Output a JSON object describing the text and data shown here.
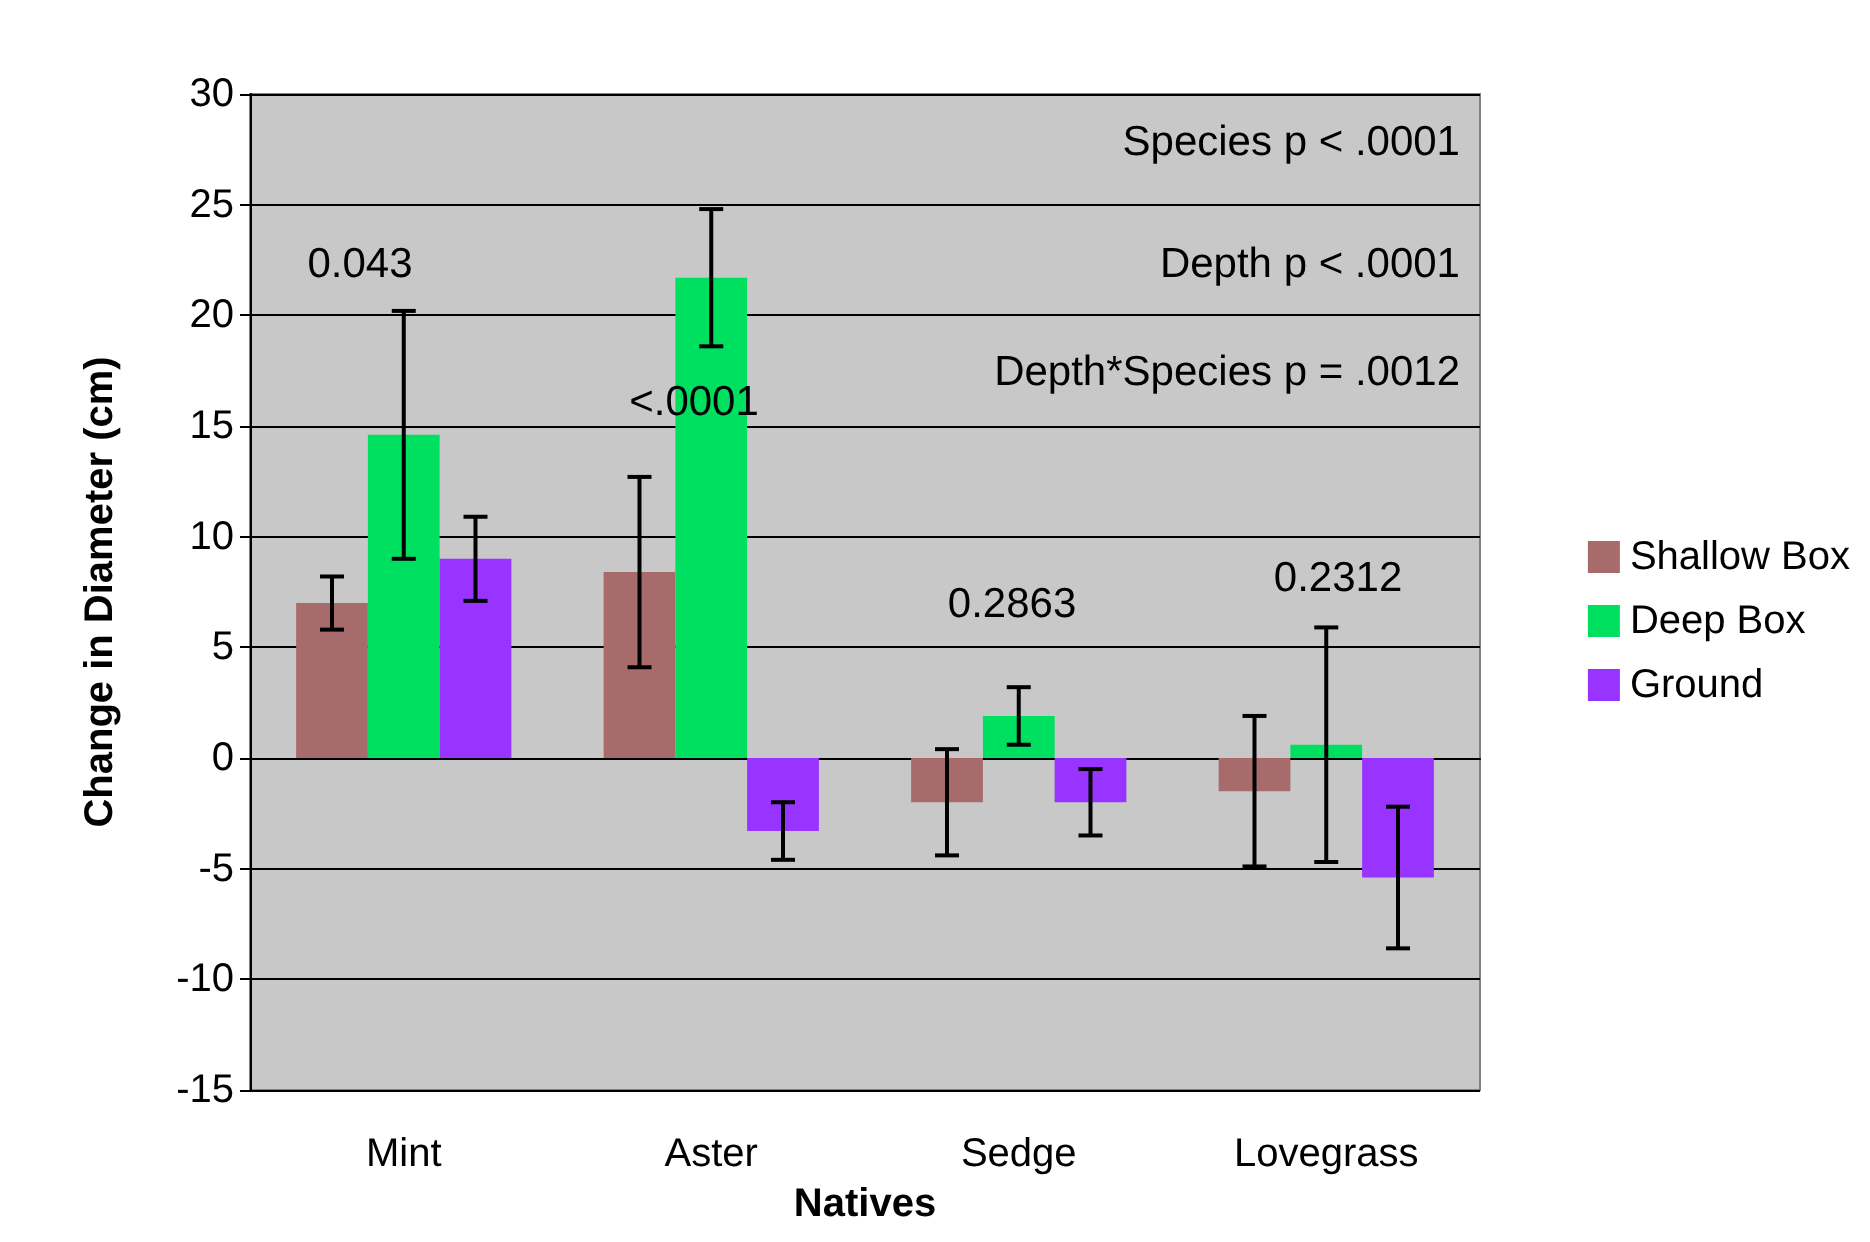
{
  "chart_data": {
    "type": "bar",
    "xlabel": "Natives",
    "ylabel": "Change in Diameter (cm)",
    "categories": [
      "Mint",
      "Aster",
      "Sedge",
      "Lovegrass"
    ],
    "series": [
      {
        "name": "Shallow Box",
        "color": "#a86b6b",
        "values": [
          7,
          8.4,
          -2,
          -1.5
        ],
        "errors": [
          1.2,
          4.3,
          2.4,
          3.4
        ]
      },
      {
        "name": "Deep Box",
        "color": "#00e060",
        "values": [
          14.6,
          21.7,
          1.9,
          0.6
        ],
        "errors": [
          5.6,
          3.1,
          1.3,
          5.3
        ]
      },
      {
        "name": "Ground",
        "color": "#9933ff",
        "values": [
          9,
          -3.3,
          -2,
          -5.4
        ],
        "errors": [
          1.9,
          1.3,
          1.5,
          3.2
        ]
      }
    ],
    "ylim": [
      -15,
      30
    ],
    "yticks": [
      -15,
      -10,
      -5,
      0,
      5,
      10,
      15,
      20,
      25,
      30
    ],
    "grid": "y",
    "legend": "right",
    "annotations": [
      "0.043",
      "<.0001",
      "0.2863",
      "0.2312",
      "Species p < .0001",
      "Depth p < .0001",
      "Depth*Species p = .0012"
    ]
  }
}
